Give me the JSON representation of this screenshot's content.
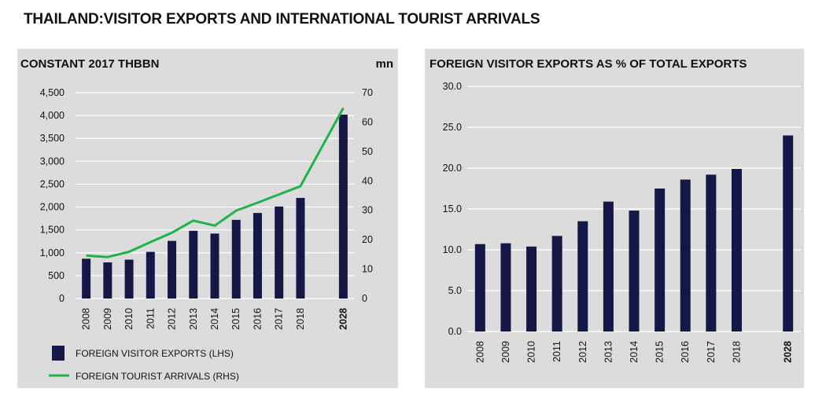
{
  "page_title": "THAILAND:VISITOR EXPORTS AND INTERNATIONAL TOURIST ARRIVALS",
  "colors": {
    "bar": "#151846",
    "line": "#1fb34a",
    "grid": "#ffffff",
    "panel": "#dcdcdc"
  },
  "chart_data": [
    {
      "type": "bar",
      "title": "CONSTANT 2017 THBBN",
      "y2_unit_label": "mn",
      "categories": [
        "2008",
        "2009",
        "2010",
        "2011",
        "2012",
        "2013",
        "2014",
        "2015",
        "2016",
        "2017",
        "2018",
        "2028"
      ],
      "y_ticks": [
        "0",
        "500",
        "1,000",
        "1,500",
        "2,000",
        "2,500",
        "3,000",
        "3,500",
        "4,000",
        "4,500"
      ],
      "y2_ticks": [
        "0",
        "10",
        "20",
        "30",
        "40",
        "50",
        "60",
        "70"
      ],
      "ylim": [
        0,
        4500
      ],
      "y2lim": [
        0,
        70
      ],
      "grid": true,
      "legend_position": "bottom-left",
      "series": [
        {
          "name": "FOREIGN VISITOR EXPORTS (LHS)",
          "type": "bar",
          "axis": "left",
          "values": [
            870,
            790,
            850,
            1020,
            1260,
            1480,
            1420,
            1720,
            1870,
            2010,
            2200,
            4020
          ]
        },
        {
          "name": "FOREIGN TOURIST ARRIVALS (RHS)",
          "type": "line",
          "axis": "right",
          "values": [
            14.6,
            14.1,
            15.9,
            19.2,
            22.4,
            26.5,
            24.8,
            29.9,
            32.6,
            35.4,
            38.2,
            64.8
          ]
        }
      ]
    },
    {
      "type": "bar",
      "title": "FOREIGN VISITOR EXPORTS AS % OF TOTAL EXPORTS",
      "categories": [
        "2008",
        "2009",
        "2010",
        "2011",
        "2012",
        "2013",
        "2014",
        "2015",
        "2016",
        "2017",
        "2018",
        "2028"
      ],
      "y_ticks": [
        "0.0",
        "5.0",
        "10.0",
        "15.0",
        "20.0",
        "25.0",
        "30.0"
      ],
      "ylim": [
        0,
        30
      ],
      "grid": true,
      "series": [
        {
          "name": "",
          "values": [
            10.7,
            10.8,
            10.4,
            11.7,
            13.5,
            15.9,
            14.8,
            17.5,
            18.6,
            19.2,
            19.9,
            24.0
          ]
        }
      ]
    }
  ]
}
